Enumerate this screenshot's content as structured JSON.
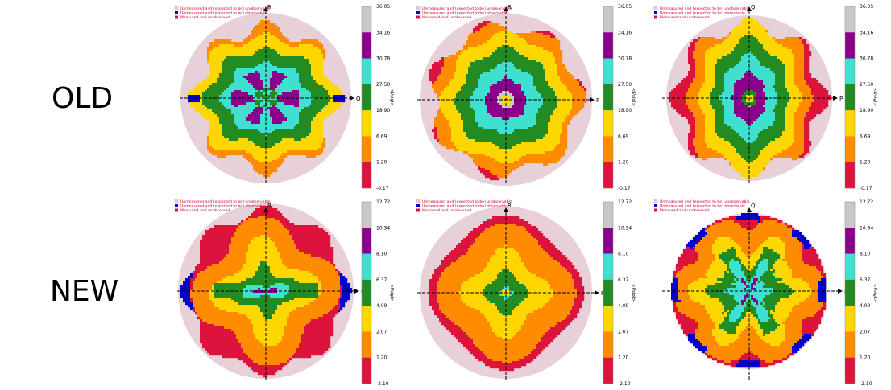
{
  "rows": [
    {
      "label": "OLD",
      "scale": [
        "36.05",
        "34.16",
        "30.78",
        "27.50",
        "18.90",
        "6.69",
        "1.20",
        "-0.17"
      ],
      "panels": [
        {
          "legend": [
            "Unmeasured and (expected to be) unobservable",
            "Unmeasured and (expected to be) observable",
            "Measured and unobserved"
          ],
          "axis_v": "R",
          "axis_h": "Q",
          "ylabel": "<I/sigI>",
          "pattern": "old1"
        },
        {
          "legend": [
            "Unmeasured and (expected to be) unobservable",
            "Unmeasured and (expected to be) observable",
            "Measured and unobserved"
          ],
          "axis_v": "R",
          "axis_h": "P",
          "ylabel": "<I/sigI>",
          "pattern": "old2"
        },
        {
          "legend": [
            "Unmeasured and (expected to be) unobservable",
            "Unmeasured and (expected to be) observable",
            "Measured and unobserved"
          ],
          "axis_v": "Q",
          "axis_h": "P",
          "ylabel": "<I/sigI>",
          "pattern": "old3"
        }
      ]
    },
    {
      "label": "NEW",
      "scale": [
        "12.72",
        "10.34",
        "8.10",
        "6.37",
        "4.09",
        "2.07",
        "1.20",
        "-2.10"
      ],
      "panels": [
        {
          "legend": [
            "Unmeasured and (expected to be) unobservable",
            "Unmeasured and (expected to be) observable",
            "Measured and unobserved"
          ],
          "axis_v": "R",
          "axis_h": "Q",
          "ylabel": "<I/sigI>",
          "pattern": "new1"
        },
        {
          "legend": [
            "Unmeasured and (expected to be) unobservable",
            "Unmeasured and (expected to be) observable",
            "Measured and unobserved"
          ],
          "axis_v": "R",
          "axis_h": "P",
          "ylabel": "<I/sigI>",
          "pattern": "new2"
        },
        {
          "legend": [
            "Unmeasured and (expected to be) unobservable",
            "Unmeasured and (expected to be) observable",
            "Measured and unobserved"
          ],
          "axis_v": "Q",
          "axis_h": "P",
          "ylabel": "<I/sigI>",
          "pattern": "new3"
        }
      ]
    }
  ],
  "colors": {
    "bins": [
      "#dc143c",
      "#ff8c00",
      "#ffd700",
      "#228b22",
      "#40e0d0",
      "#8b008b",
      "#c8c8c8"
    ],
    "unobservable": "#e8d0d8",
    "observable": "#0000cd",
    "unobserved": "#dc143c",
    "legend_text": "#cc0033"
  }
}
